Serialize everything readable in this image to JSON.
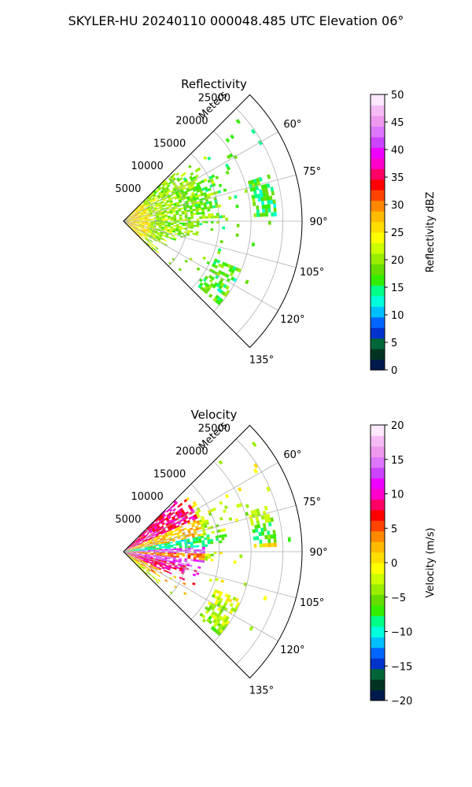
{
  "suptitle": "SKYLER-HU  20240110  000048.485 UTC Elevation 06°",
  "chart_data": [
    {
      "type": "heatmap",
      "title": "Reflectivity",
      "radial_axis_label": "Meters",
      "radial_ticks": [
        5000,
        10000,
        15000,
        20000,
        25000
      ],
      "radial_tick_labels": [
        "5000",
        "10000",
        "15000",
        "20000",
        "25000"
      ],
      "rlim": [
        0,
        28000
      ],
      "azimuth_range_deg": [
        45,
        135
      ],
      "azimuth_ticks_deg": [
        60,
        75,
        90,
        105,
        120,
        135
      ],
      "azimuth_tick_labels": [
        "60°",
        "75°",
        "90°",
        "105°",
        "120°",
        "135°"
      ],
      "grid": true,
      "colorbar": {
        "label": "Reflectivity dBZ",
        "range": [
          0,
          50
        ],
        "ticks": [
          0,
          5,
          10,
          15,
          20,
          25,
          30,
          35,
          40,
          45,
          50
        ],
        "tick_labels": [
          "0",
          "5",
          "10",
          "15",
          "20",
          "25",
          "30",
          "35",
          "40",
          "45",
          "50"
        ],
        "colors": [
          "#001a4d",
          "#003322",
          "#00663a",
          "#0033cc",
          "#0066ff",
          "#00bfff",
          "#00ffdd",
          "#00ff88",
          "#33ee00",
          "#66dd00",
          "#99ee00",
          "#ccff00",
          "#ffff00",
          "#ffdd00",
          "#ffbb00",
          "#ff8800",
          "#ff4400",
          "#ff0000",
          "#ff0066",
          "#ff00cc",
          "#ee00ff",
          "#cc44ff",
          "#dd77ff",
          "#ee99ee",
          "#f5bbf5",
          "#fde8fd"
        ]
      },
      "field_description": "mostly 15-25 dBZ returns near the radar, decreasing with range"
    },
    {
      "type": "heatmap",
      "title": "Velocity",
      "radial_axis_label": "Meters",
      "radial_ticks": [
        5000,
        10000,
        15000,
        20000,
        25000
      ],
      "radial_tick_labels": [
        "5000",
        "10000",
        "15000",
        "20000",
        "25000"
      ],
      "rlim": [
        0,
        28000
      ],
      "azimuth_range_deg": [
        45,
        135
      ],
      "azimuth_ticks_deg": [
        60,
        75,
        90,
        105,
        120,
        135
      ],
      "azimuth_tick_labels": [
        "60°",
        "75°",
        "90°",
        "105°",
        "120°",
        "135°"
      ],
      "grid": true,
      "colorbar": {
        "label": "Velocity (m/s)",
        "range": [
          -20,
          20
        ],
        "ticks": [
          -20,
          -15,
          -10,
          -5,
          0,
          5,
          10,
          15,
          20
        ],
        "tick_labels": [
          "−20",
          "−15",
          "−10",
          "−5",
          "0",
          "5",
          "10",
          "15",
          "20"
        ],
        "colors": [
          "#001a4d",
          "#003322",
          "#00663a",
          "#0033cc",
          "#0066ff",
          "#00bfff",
          "#00ffdd",
          "#00ff88",
          "#33ee00",
          "#66dd00",
          "#99ee00",
          "#ccff00",
          "#ffff00",
          "#ffdd00",
          "#ffbb00",
          "#ff8800",
          "#ff4400",
          "#ff0000",
          "#ff0066",
          "#ff00cc",
          "#ee00ff",
          "#cc44ff",
          "#dd77ff",
          "#ee99ee",
          "#f5bbf5",
          "#fde8fd"
        ]
      },
      "field_description": "velocity bands alternating with azimuth, strong positive near 95-115 deg"
    }
  ]
}
